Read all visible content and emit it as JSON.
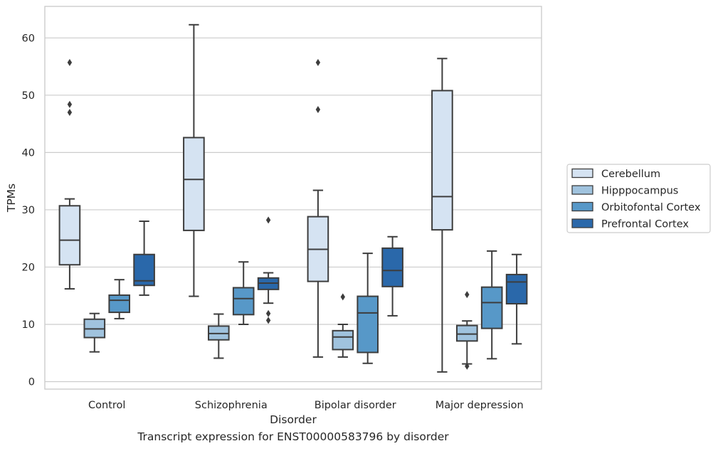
{
  "caption": "Transcript expression for ENST00000583796 by disorder",
  "chart_data": {
    "type": "box",
    "xlabel": "Disorder",
    "ylabel": "TPMs",
    "ylim": [
      -1.3,
      65.5
    ],
    "yticks": [
      0,
      10,
      20,
      30,
      40,
      50,
      60
    ],
    "grid": true,
    "legend_position": "right",
    "categories": [
      "Control",
      "Schizophrenia",
      "Bipolar disorder",
      "Major depression"
    ],
    "series": [
      {
        "name": "Cerebellum",
        "color": "#d5e3f2",
        "boxes": [
          {
            "whisker_low": 16.2,
            "q1": 20.4,
            "median": 24.7,
            "q3": 30.7,
            "whisker_high": 31.9,
            "outliers": [
              47.0,
              48.4,
              55.7
            ]
          },
          {
            "whisker_low": 14.9,
            "q1": 26.4,
            "median": 35.3,
            "q3": 42.6,
            "whisker_high": 62.3,
            "outliers": []
          },
          {
            "whisker_low": 4.3,
            "q1": 17.5,
            "median": 23.1,
            "q3": 28.8,
            "whisker_high": 33.4,
            "outliers": [
              47.5,
              55.7
            ]
          },
          {
            "whisker_low": 1.7,
            "q1": 26.5,
            "median": 32.3,
            "q3": 50.8,
            "whisker_high": 56.4,
            "outliers": []
          }
        ]
      },
      {
        "name": "Hipppocampus",
        "color": "#a0c3de",
        "boxes": [
          {
            "whisker_low": 5.2,
            "q1": 7.7,
            "median": 9.2,
            "q3": 10.9,
            "whisker_high": 11.9,
            "outliers": []
          },
          {
            "whisker_low": 4.1,
            "q1": 7.3,
            "median": 8.4,
            "q3": 9.7,
            "whisker_high": 11.8,
            "outliers": []
          },
          {
            "whisker_low": 4.3,
            "q1": 5.6,
            "median": 7.8,
            "q3": 8.9,
            "whisker_high": 10.0,
            "outliers": [
              14.8
            ]
          },
          {
            "whisker_low": 3.1,
            "q1": 7.1,
            "median": 8.3,
            "q3": 9.8,
            "whisker_high": 10.6,
            "outliers": [
              2.7,
              15.2
            ]
          }
        ]
      },
      {
        "name": "Orbitofontal Cortex",
        "color": "#5798c8",
        "boxes": [
          {
            "whisker_low": 11.0,
            "q1": 12.1,
            "median": 14.2,
            "q3": 15.1,
            "whisker_high": 17.8,
            "outliers": []
          },
          {
            "whisker_low": 10.0,
            "q1": 11.7,
            "median": 14.5,
            "q3": 16.4,
            "whisker_high": 20.9,
            "outliers": []
          },
          {
            "whisker_low": 3.2,
            "q1": 5.1,
            "median": 12.0,
            "q3": 14.9,
            "whisker_high": 22.4,
            "outliers": []
          },
          {
            "whisker_low": 4.0,
            "q1": 9.3,
            "median": 13.8,
            "q3": 16.5,
            "whisker_high": 22.8,
            "outliers": []
          }
        ]
      },
      {
        "name": "Prefrontal Cortex",
        "color": "#2a68aa",
        "boxes": [
          {
            "whisker_low": 15.1,
            "q1": 16.8,
            "median": 17.6,
            "q3": 22.2,
            "whisker_high": 28.0,
            "outliers": []
          },
          {
            "whisker_low": 13.7,
            "q1": 16.1,
            "median": 17.2,
            "q3": 18.1,
            "whisker_high": 19.0,
            "outliers": [
              10.7,
              11.9,
              28.2
            ]
          },
          {
            "whisker_low": 11.5,
            "q1": 16.6,
            "median": 19.4,
            "q3": 23.3,
            "whisker_high": 25.3,
            "outliers": []
          },
          {
            "whisker_low": 6.6,
            "q1": 13.6,
            "median": 17.4,
            "q3": 18.7,
            "whisker_high": 22.2,
            "outliers": []
          }
        ]
      }
    ]
  }
}
